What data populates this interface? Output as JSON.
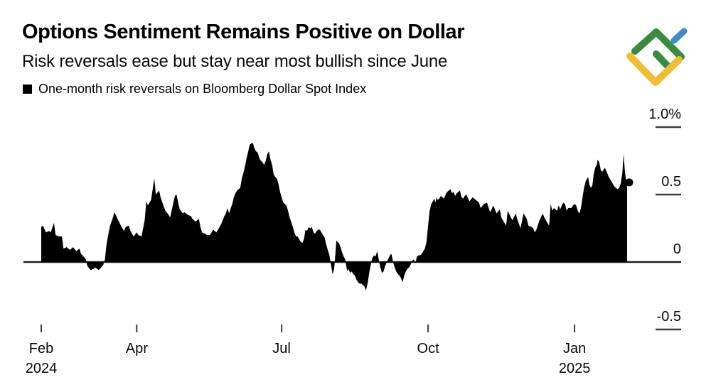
{
  "chart_data": {
    "type": "area",
    "title": "Options Sentiment Remains Positive on Dollar",
    "subtitle": "Risk reversals ease but stay near most bullish since June",
    "unit": "%",
    "x_unit": "days since 1 Feb 2024",
    "xlim": [
      0,
      368
    ],
    "ylim": [
      -0.5,
      1.0
    ],
    "grid": false,
    "axis_color": "#1f1f1f",
    "tick_color": "#3d3d3d",
    "label_color": "#0a0a0a",
    "y_ticks": [
      {
        "label": "1.0%",
        "value": 1.0
      },
      {
        "label": "0.5",
        "value": 0.5
      },
      {
        "label": "0",
        "value": 0
      },
      {
        "label": "-0.5",
        "value": -0.5
      }
    ],
    "x_ticks": [
      {
        "label": "Feb",
        "sublabel": "2024",
        "day": 0
      },
      {
        "label": "Apr",
        "day": 60
      },
      {
        "label": "Jul",
        "day": 151
      },
      {
        "label": "Oct",
        "day": 243
      },
      {
        "label": "Jan",
        "sublabel": "2025",
        "day": 335
      }
    ],
    "series": [
      {
        "name": "One-month risk reversals on Bloomberg Dollar Spot Index",
        "color": "#000000",
        "points": [
          [
            0,
            0.26
          ],
          [
            1,
            0.27
          ],
          [
            3,
            0.22
          ],
          [
            5,
            0.23
          ],
          [
            6,
            0.22
          ],
          [
            8,
            0.29
          ],
          [
            9,
            0.2
          ],
          [
            11,
            0.19
          ],
          [
            13,
            0.19
          ],
          [
            14,
            0.1
          ],
          [
            16,
            0.11
          ],
          [
            18,
            0.09
          ],
          [
            20,
            0.11
          ],
          [
            22,
            0.08
          ],
          [
            24,
            0.1
          ],
          [
            25,
            0.06
          ],
          [
            26,
            0.05
          ],
          [
            28,
            0.02
          ],
          [
            29,
            -0.03
          ],
          [
            31,
            -0.06
          ],
          [
            33,
            -0.05
          ],
          [
            34,
            -0.04
          ],
          [
            36,
            -0.06
          ],
          [
            37,
            -0.05
          ],
          [
            39,
            -0.02
          ],
          [
            40,
            0.02
          ],
          [
            41,
            0.13
          ],
          [
            43,
            0.26
          ],
          [
            45,
            0.33
          ],
          [
            46,
            0.37
          ],
          [
            48,
            0.32
          ],
          [
            50,
            0.27
          ],
          [
            52,
            0.23
          ],
          [
            53,
            0.26
          ],
          [
            55,
            0.27
          ],
          [
            56,
            0.23
          ],
          [
            58,
            0.19
          ],
          [
            60,
            0.22
          ],
          [
            61,
            0.2
          ],
          [
            63,
            0.19
          ],
          [
            65,
            0.31
          ],
          [
            66,
            0.45
          ],
          [
            67,
            0.42
          ],
          [
            69,
            0.46
          ],
          [
            71,
            0.62
          ],
          [
            72,
            0.5
          ],
          [
            74,
            0.53
          ],
          [
            75,
            0.48
          ],
          [
            77,
            0.41
          ],
          [
            78,
            0.38
          ],
          [
            80,
            0.35
          ],
          [
            81,
            0.33
          ],
          [
            83,
            0.44
          ],
          [
            84,
            0.49
          ],
          [
            85,
            0.5
          ],
          [
            86,
            0.44
          ],
          [
            87,
            0.39
          ],
          [
            89,
            0.36
          ],
          [
            90,
            0.37
          ],
          [
            92,
            0.35
          ],
          [
            94,
            0.34
          ],
          [
            95,
            0.32
          ],
          [
            97,
            0.3
          ],
          [
            99,
            0.32
          ],
          [
            100,
            0.26
          ],
          [
            101,
            0.22
          ],
          [
            103,
            0.21
          ],
          [
            104,
            0.2
          ],
          [
            106,
            0.2
          ],
          [
            108,
            0.24
          ],
          [
            110,
            0.22
          ],
          [
            112,
            0.26
          ],
          [
            113,
            0.28
          ],
          [
            114,
            0.31
          ],
          [
            115,
            0.34
          ],
          [
            116,
            0.36
          ],
          [
            117,
            0.4
          ],
          [
            118,
            0.36
          ],
          [
            119,
            0.4
          ],
          [
            120,
            0.43
          ],
          [
            121,
            0.48
          ],
          [
            122,
            0.51
          ],
          [
            123,
            0.53
          ],
          [
            124,
            0.54
          ],
          [
            125,
            0.55
          ],
          [
            126,
            0.62
          ],
          [
            127,
            0.66
          ],
          [
            128,
            0.71
          ],
          [
            129,
            0.77
          ],
          [
            130,
            0.82
          ],
          [
            131,
            0.87
          ],
          [
            132,
            0.88
          ],
          [
            133,
            0.88
          ],
          [
            134,
            0.84
          ],
          [
            135,
            0.82
          ],
          [
            136,
            0.81
          ],
          [
            137,
            0.77
          ],
          [
            138,
            0.75
          ],
          [
            139,
            0.74
          ],
          [
            140,
            0.72
          ],
          [
            141,
            0.75
          ],
          [
            142,
            0.8
          ],
          [
            143,
            0.82
          ],
          [
            144,
            0.76
          ],
          [
            145,
            0.72
          ],
          [
            146,
            0.65
          ],
          [
            147,
            0.63
          ],
          [
            148,
            0.62
          ],
          [
            149,
            0.58
          ],
          [
            150,
            0.52
          ],
          [
            151,
            0.48
          ],
          [
            152,
            0.44
          ],
          [
            153,
            0.43
          ],
          [
            154,
            0.42
          ],
          [
            155,
            0.38
          ],
          [
            156,
            0.33
          ],
          [
            157,
            0.3
          ],
          [
            158,
            0.26
          ],
          [
            159,
            0.22
          ],
          [
            160,
            0.19
          ],
          [
            161,
            0.19
          ],
          [
            162,
            0.17
          ],
          [
            163,
            0.15
          ],
          [
            164,
            0.14
          ],
          [
            165,
            0.17
          ],
          [
            166,
            0.24
          ],
          [
            167,
            0.23
          ],
          [
            168,
            0.26
          ],
          [
            169,
            0.25
          ],
          [
            170,
            0.26
          ],
          [
            171,
            0.22
          ],
          [
            172,
            0.21
          ],
          [
            173,
            0.23
          ],
          [
            174,
            0.24
          ],
          [
            175,
            0.24
          ],
          [
            176,
            0.22
          ],
          [
            177,
            0.2
          ],
          [
            178,
            0.18
          ],
          [
            179,
            0.13
          ],
          [
            180,
            0.09
          ],
          [
            181,
            0.05
          ],
          [
            182,
            -0.02
          ],
          [
            183,
            -0.09
          ],
          [
            184,
            -0.05
          ],
          [
            184.6,
            0.03
          ],
          [
            185.4,
            0.16
          ],
          [
            186,
            0.15
          ],
          [
            187,
            0.14
          ],
          [
            188,
            0.11
          ],
          [
            189,
            0.07
          ],
          [
            190,
            0.04
          ],
          [
            191,
            0.02
          ],
          [
            191.6,
            -0.03
          ],
          [
            192.3,
            -0.07
          ],
          [
            193,
            -0.05
          ],
          [
            194,
            -0.08
          ],
          [
            195,
            -0.07
          ],
          [
            196,
            -0.09
          ],
          [
            197,
            -0.1
          ],
          [
            198,
            -0.13
          ],
          [
            199,
            -0.15
          ],
          [
            200,
            -0.16
          ],
          [
            201,
            -0.16
          ],
          [
            202,
            -0.17
          ],
          [
            203,
            -0.18
          ],
          [
            204,
            -0.21
          ],
          [
            205,
            -0.16
          ],
          [
            206,
            -0.08
          ],
          [
            207,
            -0.02
          ],
          [
            208,
            0.03
          ],
          [
            209,
            0.05
          ],
          [
            210,
            0.04
          ],
          [
            211,
            0.08
          ],
          [
            212,
            0.02
          ],
          [
            213,
            -0.04
          ],
          [
            214,
            -0.08
          ],
          [
            215,
            -0.07
          ],
          [
            216,
            -0.03
          ],
          [
            217.5,
            0.01
          ],
          [
            219,
            0.05
          ],
          [
            220,
            0.06
          ],
          [
            221,
            0.0
          ],
          [
            222,
            -0.04
          ],
          [
            223,
            -0.07
          ],
          [
            224,
            -0.09
          ],
          [
            225,
            -0.1
          ],
          [
            226,
            -0.12
          ],
          [
            227,
            -0.15
          ],
          [
            228,
            -0.1
          ],
          [
            229,
            -0.07
          ],
          [
            230,
            -0.05
          ],
          [
            231,
            -0.04
          ],
          [
            232,
            -0.02
          ],
          [
            233,
            0.01
          ],
          [
            234,
            0.02
          ],
          [
            235,
            -0.01
          ],
          [
            236,
            0.04
          ],
          [
            237,
            0.05
          ],
          [
            238,
            0.05
          ],
          [
            239,
            0.06
          ],
          [
            240,
            0.08
          ],
          [
            241,
            0.1
          ],
          [
            242,
            0.15
          ],
          [
            243,
            0.27
          ],
          [
            244,
            0.38
          ],
          [
            245,
            0.43
          ],
          [
            246,
            0.45
          ],
          [
            247,
            0.47
          ],
          [
            247.6,
            0.44
          ],
          [
            248.3,
            0.48
          ],
          [
            249,
            0.46
          ],
          [
            250,
            0.47
          ],
          [
            251,
            0.49
          ],
          [
            252,
            0.48
          ],
          [
            253,
            0.47
          ],
          [
            254,
            0.5
          ],
          [
            255,
            0.52
          ],
          [
            256,
            0.53
          ],
          [
            257,
            0.54
          ],
          [
            258,
            0.51
          ],
          [
            259,
            0.52
          ],
          [
            260,
            0.49
          ],
          [
            261,
            0.51
          ],
          [
            262,
            0.52
          ],
          [
            263,
            0.53
          ],
          [
            264,
            0.48
          ],
          [
            265,
            0.47
          ],
          [
            266,
            0.49
          ],
          [
            267,
            0.5
          ],
          [
            269,
            0.45
          ],
          [
            271,
            0.48
          ],
          [
            273,
            0.46
          ],
          [
            275,
            0.44
          ],
          [
            276,
            0.4
          ],
          [
            278,
            0.43
          ],
          [
            280,
            0.44
          ],
          [
            282,
            0.37
          ],
          [
            284,
            0.42
          ],
          [
            286,
            0.36
          ],
          [
            288,
            0.39
          ],
          [
            289,
            0.33
          ],
          [
            290,
            0.31
          ],
          [
            292,
            0.27
          ],
          [
            293,
            0.38
          ],
          [
            295,
            0.33
          ],
          [
            296,
            0.31
          ],
          [
            298,
            0.36
          ],
          [
            299,
            0.32
          ],
          [
            301,
            0.25
          ],
          [
            303,
            0.36
          ],
          [
            305,
            0.32
          ],
          [
            306,
            0.27
          ],
          [
            308,
            0.26
          ],
          [
            309,
            0.25
          ],
          [
            310,
            0.22
          ],
          [
            311,
            0.24
          ],
          [
            313,
            0.31
          ],
          [
            315,
            0.36
          ],
          [
            316,
            0.33
          ],
          [
            317,
            0.31
          ],
          [
            318,
            0.29
          ],
          [
            319,
            0.27
          ],
          [
            320,
            0.43
          ],
          [
            321,
            0.38
          ],
          [
            322,
            0.4
          ],
          [
            324,
            0.38
          ],
          [
            325,
            0.42
          ],
          [
            326,
            0.39
          ],
          [
            327,
            0.42
          ],
          [
            328,
            0.44
          ],
          [
            329,
            0.43
          ],
          [
            330,
            0.38
          ],
          [
            331,
            0.4
          ],
          [
            333,
            0.4
          ],
          [
            334,
            0.42
          ],
          [
            335,
            0.43
          ],
          [
            336,
            0.42
          ],
          [
            337,
            0.38
          ],
          [
            338,
            0.36
          ],
          [
            339,
            0.4
          ],
          [
            340,
            0.48
          ],
          [
            341,
            0.55
          ],
          [
            342,
            0.6
          ],
          [
            343.5,
            0.63
          ],
          [
            344.4,
            0.57
          ],
          [
            345.3,
            0.55
          ],
          [
            346.2,
            0.57
          ],
          [
            347,
            0.65
          ],
          [
            348,
            0.7
          ],
          [
            349,
            0.72
          ],
          [
            349.5,
            0.76
          ],
          [
            350.5,
            0.74
          ],
          [
            351.5,
            0.68
          ],
          [
            352.5,
            0.67
          ],
          [
            354,
            0.7
          ],
          [
            355.5,
            0.66
          ],
          [
            356.5,
            0.63
          ],
          [
            358,
            0.6
          ],
          [
            359,
            0.58
          ],
          [
            360,
            0.56
          ],
          [
            361,
            0.55
          ],
          [
            362,
            0.54
          ],
          [
            363,
            0.55
          ],
          [
            364,
            0.58
          ],
          [
            365,
            0.66
          ],
          [
            365.8,
            0.8
          ],
          [
            366.6,
            0.67
          ],
          [
            367.3,
            0.61
          ],
          [
            368,
            0.59
          ]
        ]
      }
    ],
    "end_dot": {
      "day": 368,
      "value": 0.59
    }
  },
  "logo": {
    "alt": "LiteFinance",
    "green": "#3a8b3f",
    "blue": "#3e8ad0",
    "yellow": "#f0bf31"
  }
}
